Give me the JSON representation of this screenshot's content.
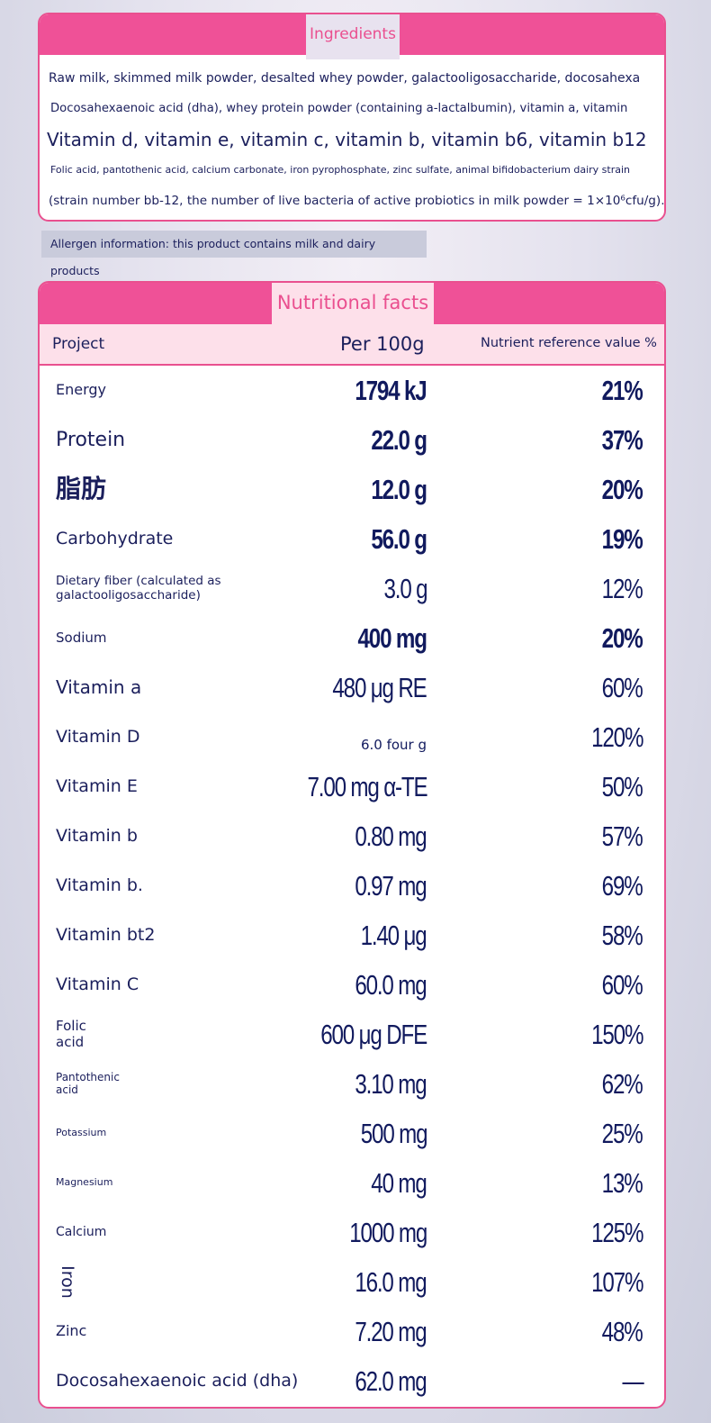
{
  "ingredients": {
    "title": "Ingredients",
    "lines": [
      "Raw milk, skimmed milk powder, desalted whey powder, galactooligosaccharide, docosahexa",
      "Docosahexaenoic acid (dha), whey protein powder (containing a-lactalbumin), vitamin a, vitamin",
      "Vitamin d, vitamin e, vitamin c, vitamin b, vitamin b6, vitamin b12",
      "Folic acid, pantothenic acid, calcium carbonate, iron pyrophosphate, zinc sulfate, animal bifidobacterium dairy strain",
      "(strain number bb-12, the number of live bacteria of active probiotics in milk powder = 1×10⁶cfu/g)."
    ]
  },
  "allergen": "Allergen information: this product contains milk and dairy products",
  "nutrition": {
    "title": "Nutritional facts",
    "col_project": "Project",
    "col_per": "Per 100g",
    "col_nrv": "Nutrient reference value %",
    "rows": [
      {
        "label": "Energy",
        "value": "1794 kJ",
        "nrv": "21%"
      },
      {
        "label": "Protein",
        "value": "22.0 g",
        "nrv": "37%"
      },
      {
        "label": "脂肪",
        "value": "12.0 g",
        "nrv": "20%"
      },
      {
        "label": "Carbohydrate",
        "value": "56.0 g",
        "nrv": "19%"
      },
      {
        "label": "Dietary fiber (calculated as galactooligosaccharide)",
        "value": "3.0 g",
        "nrv": "12%"
      },
      {
        "label": "Sodium",
        "value": "400 mg",
        "nrv": "20%"
      },
      {
        "label": "Vitamin a",
        "value": "480 μg RE",
        "nrv": "60%"
      },
      {
        "label": "Vitamin D",
        "value": "6.0 four g",
        "nrv": "120%"
      },
      {
        "label": "Vitamin E",
        "value": "7.00 mg α-TE",
        "nrv": "50%"
      },
      {
        "label": "Vitamin b",
        "value": "0.80 mg",
        "nrv": "57%"
      },
      {
        "label": "Vitamin b.",
        "value": "0.97 mg",
        "nrv": "69%"
      },
      {
        "label": "Vitamin bt2",
        "value": "1.40 μg",
        "nrv": "58%"
      },
      {
        "label": "Vitamin C",
        "value": "60.0 mg",
        "nrv": "60%"
      },
      {
        "label": "Folic acid",
        "value": "600 μg DFE",
        "nrv": "150%"
      },
      {
        "label": "Pantothenic acid",
        "value": "3.10 mg",
        "nrv": "62%"
      },
      {
        "label": "Potassium",
        "value": "500 mg",
        "nrv": "25%"
      },
      {
        "label": "Magnesium",
        "value": "40 mg",
        "nrv": "13%"
      },
      {
        "label": "Calcium",
        "value": "1000 mg",
        "nrv": "125%"
      },
      {
        "label": "Iron",
        "value": "16.0 mg",
        "nrv": "107%"
      },
      {
        "label": "Zinc",
        "value": "7.20 mg",
        "nrv": "48%"
      },
      {
        "label": "Docosahexaenoic acid (dha)",
        "value": "62.0 mg",
        "nrv": "—"
      }
    ]
  },
  "colors": {
    "pink": "#ef5197",
    "pink_light": "#fde0ea",
    "navy": "#1b1f5c"
  }
}
